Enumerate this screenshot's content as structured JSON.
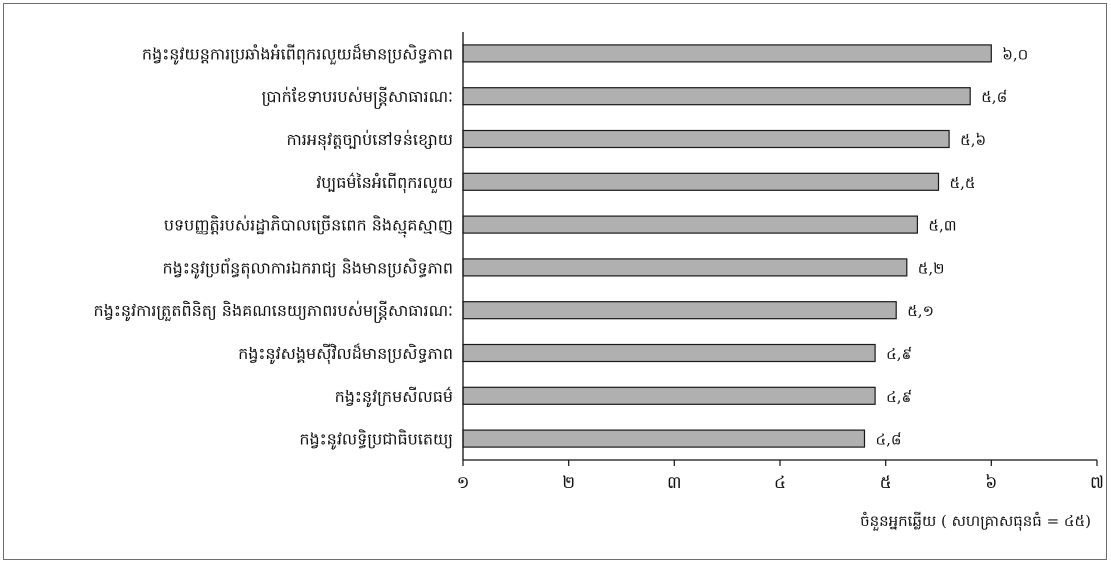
{
  "chart_data": {
    "type": "bar",
    "orientation": "horizontal",
    "categories": [
      "កង្វះនូវយន្តការប្រឆាំងអំពើពុករលួយដ៏មានប្រសិទ្ធភាព",
      "ប្រាក់ខែទាបរបស់មន្ត្រីសាធារណៈ",
      "ការអនុវត្តច្បាប់នៅទន់ខ្សោយ",
      "វប្បធម៌នៃអំពើពុករលួយ",
      "បទបញ្ញត្តិរបស់រដ្ឋាភិបាលច្រើនពេក និងស្មុគស្មាញ",
      "កង្វះនូវប្រព័ន្ធតុលាការឯករាជ្យ និងមានប្រសិទ្ធភាព",
      "កង្វះនូវការត្រួតពិនិត្យ និងគណនេយ្យភាពរបស់មន្ត្រីសាធារណៈ",
      "កង្វះនូវសង្គមស៊ីវិលដ៏មានប្រសិទ្ធភាព",
      "កង្វះនូវក្រមសីលធម៌",
      "កង្វះនូវលទ្ធិប្រជាធិបតេយ្យ"
    ],
    "values": [
      6.0,
      5.8,
      5.6,
      5.5,
      5.3,
      5.2,
      5.1,
      4.9,
      4.9,
      4.8
    ],
    "value_labels": [
      "៦,០",
      "៥,៨",
      "៥,៦",
      "៥,៥",
      "៥,៣",
      "៥,២",
      "៥,១",
      "៤,៩",
      "៤,៩",
      "៤,៨"
    ],
    "xlim": [
      1,
      7
    ],
    "xticks": [
      1,
      2,
      3,
      4,
      5,
      6,
      7
    ],
    "xtick_labels": [
      "១",
      "២",
      "៣",
      "៤",
      "៥",
      "៦",
      "៧"
    ],
    "xlabel": "ចំនួនអ្នកឆ្លើយ ( សហគ្រាសធុនធំ = ៤៥)",
    "ylabel": "",
    "title": "",
    "grid": false,
    "bar_color": "#b0b0b0",
    "bar_edge_color": "#1a1a1a"
  }
}
